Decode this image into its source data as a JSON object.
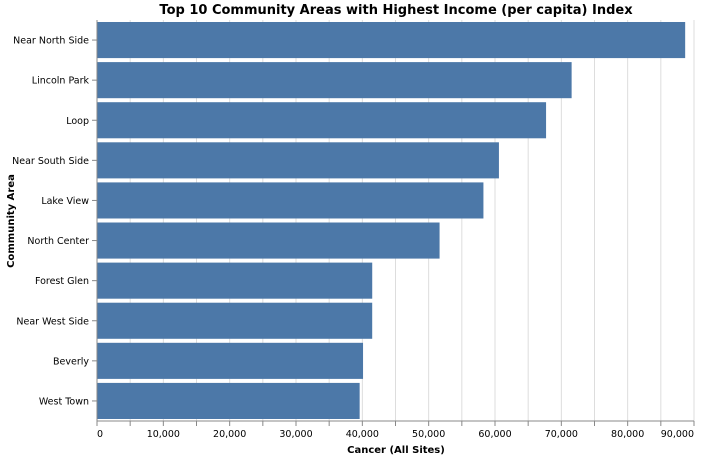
{
  "chart_data": {
    "type": "bar",
    "orientation": "horizontal",
    "title": "Top 10 Community Areas with Highest Income (per capita) Index",
    "xlabel": "Cancer (All Sites)",
    "ylabel": "Community Area",
    "categories": [
      "Near North Side",
      "Lincoln Park",
      "Loop",
      "Near South Side",
      "Lake View",
      "North Center",
      "Forest Glen",
      "Near West Side",
      "Beverly",
      "West Town"
    ],
    "values": [
      88669,
      71551,
      67699,
      60593,
      58255,
      51645,
      41491,
      41488,
      40107,
      39596
    ],
    "xlim": [
      0,
      90000
    ],
    "xticks": [
      0,
      10000,
      20000,
      30000,
      40000,
      50000,
      60000,
      70000,
      80000,
      90000
    ],
    "xtick_labels": [
      "0",
      "10,000",
      "20,000",
      "30,000",
      "40,000",
      "50,000",
      "60,000",
      "70,000",
      "80,000",
      "90,000"
    ],
    "grid": true,
    "color": "#4c78a8"
  }
}
